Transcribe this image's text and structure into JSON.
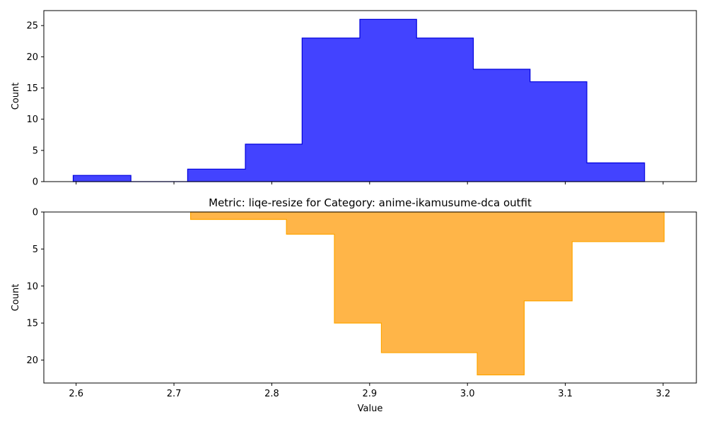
{
  "chart_data": [
    {
      "type": "bar",
      "subtype": "histogram-step-filled",
      "title": "",
      "xlabel": "",
      "ylabel": "Count",
      "color": "#3333ff",
      "edge_color": "#0000dd",
      "xlim": [
        2.567,
        3.234
      ],
      "ylim": [
        0,
        27.4
      ],
      "inverted_y": false,
      "xticks": [
        2.6,
        2.7,
        2.8,
        2.9,
        3.0,
        3.1,
        3.2
      ],
      "show_xtick_labels": false,
      "yticks": [
        0,
        5,
        10,
        15,
        20,
        25
      ],
      "bin_edges": [
        2.597,
        2.656,
        2.714,
        2.773,
        2.831,
        2.89,
        2.948,
        3.006,
        3.064,
        3.122,
        3.181
      ],
      "values": [
        1,
        0,
        2,
        6,
        23,
        26,
        23,
        18,
        16,
        3
      ]
    },
    {
      "type": "bar",
      "subtype": "histogram-step-filled",
      "title": "Metric: liqe-resize for Category: anime-ikamusume-dca outfit",
      "xlabel": "Value",
      "ylabel": "Count",
      "color": "#ffb13e",
      "edge_color": "#ffa500",
      "xlim": [
        2.567,
        3.234
      ],
      "ylim": [
        0,
        23.1
      ],
      "inverted_y": true,
      "xticks": [
        2.6,
        2.7,
        2.8,
        2.9,
        3.0,
        3.1,
        3.2
      ],
      "show_xtick_labels": true,
      "yticks": [
        0,
        5,
        10,
        15,
        20
      ],
      "bin_edges": [
        2.717,
        2.766,
        2.815,
        2.864,
        2.912,
        2.961,
        3.01,
        3.058,
        3.107,
        3.156,
        3.201
      ],
      "values": [
        1,
        1,
        3,
        15,
        19,
        19,
        22,
        12,
        4,
        4
      ]
    }
  ]
}
